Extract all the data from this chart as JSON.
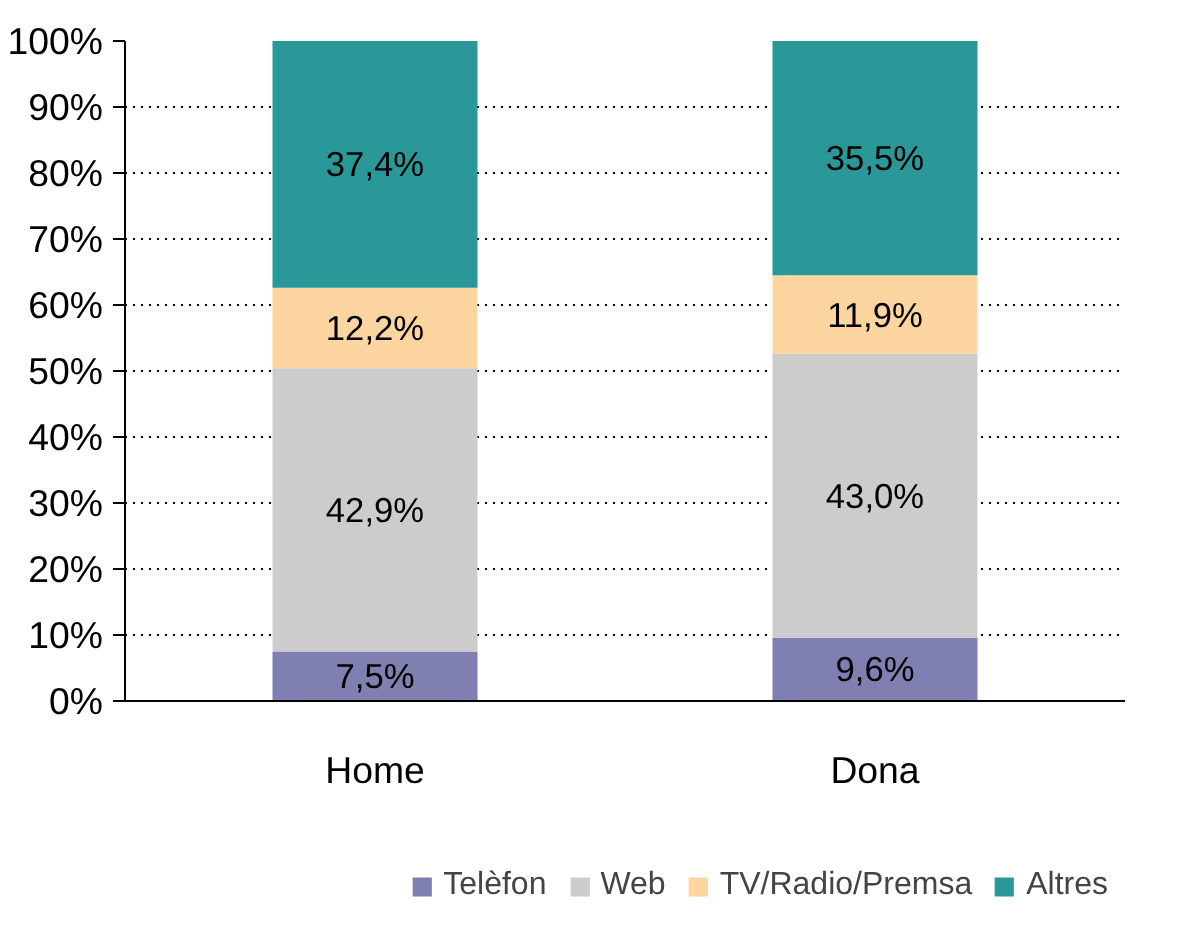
{
  "chart_data": {
    "type": "bar",
    "stacked": true,
    "categories": [
      "Home",
      "Dona"
    ],
    "series": [
      {
        "name": "Telèfon",
        "color": "#7f7fb2",
        "values": [
          7.5,
          9.6
        ],
        "value_labels": [
          "7,5%",
          "9,6%"
        ]
      },
      {
        "name": "Web",
        "color": "#cccccc",
        "values": [
          42.9,
          43.0
        ],
        "value_labels": [
          "42,9%",
          "43,0%"
        ]
      },
      {
        "name": "TV/Radio/Premsa",
        "color": "#fcd5a0",
        "values": [
          12.2,
          11.9
        ],
        "value_labels": [
          "12,2%",
          "11,9%"
        ]
      },
      {
        "name": "Altres",
        "color": "#2a9898",
        "values": [
          37.4,
          35.5
        ],
        "value_labels": [
          "37,4%",
          "35,5%"
        ]
      }
    ],
    "ylim": [
      0,
      100
    ],
    "yticks": [
      {
        "value": 0,
        "label": "0%"
      },
      {
        "value": 10,
        "label": "10%"
      },
      {
        "value": 20,
        "label": "20%"
      },
      {
        "value": 30,
        "label": "30%"
      },
      {
        "value": 40,
        "label": "40%"
      },
      {
        "value": 50,
        "label": "50%"
      },
      {
        "value": 60,
        "label": "60%"
      },
      {
        "value": 70,
        "label": "70%"
      },
      {
        "value": 80,
        "label": "80%"
      },
      {
        "value": 90,
        "label": "90%"
      },
      {
        "value": 100,
        "label": "100%"
      }
    ],
    "grid": "y",
    "legend": "bottom"
  }
}
